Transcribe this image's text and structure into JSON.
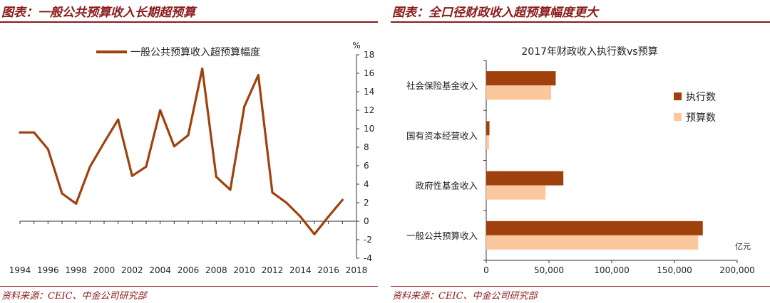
{
  "left": {
    "title": "图表：一般公共预算收入长期超预算",
    "source": "资料来源：CEIC、中金公司研究部"
  },
  "right": {
    "title": "图表：全口径财政收入超预算幅度更大",
    "source": "资料来源：CEIC、中金公司研究部"
  },
  "colors": {
    "accent": "#8b1a1a",
    "line": "#a0410d",
    "bar_actual": "#a0410d",
    "bar_budget": "#fbc79c"
  },
  "chart_data": [
    {
      "type": "line",
      "title": "",
      "series": [
        {
          "name": "一般公共预算收入超预算幅度",
          "x": [
            1994,
            1995,
            1996,
            1997,
            1998,
            1999,
            2000,
            2001,
            2002,
            2003,
            2004,
            2005,
            2006,
            2007,
            2008,
            2009,
            2010,
            2011,
            2012,
            2013,
            2014,
            2015,
            2016,
            2017
          ],
          "values": [
            9.6,
            9.6,
            7.8,
            3.0,
            1.9,
            5.9,
            8.5,
            11.0,
            4.9,
            5.9,
            12.0,
            8.1,
            9.3,
            16.5,
            4.8,
            3.4,
            12.4,
            15.8,
            3.1,
            2.0,
            0.5,
            -1.4,
            0.5,
            2.3
          ]
        }
      ],
      "yunit": "%",
      "ylim": [
        -4,
        18
      ],
      "yticks": [
        -4,
        -2,
        0,
        2,
        4,
        6,
        8,
        10,
        12,
        14,
        16,
        18
      ],
      "xticks": [
        1994,
        1996,
        1998,
        2000,
        2002,
        2004,
        2006,
        2008,
        2010,
        2012,
        2014,
        2016,
        2018
      ],
      "legend": "top"
    },
    {
      "type": "bar",
      "orientation": "horizontal",
      "title": "2017年财政收入执行数vs预算",
      "categories": [
        "一般公共预算收入",
        "政府性基金收入",
        "国有资本经营收入",
        "社会保险基金收入"
      ],
      "series": [
        {
          "name": "执行数",
          "values": [
            172593,
            61462,
            2581,
            55380
          ]
        },
        {
          "name": "预算数",
          "values": [
            168890,
            47200,
            2174,
            51675
          ]
        }
      ],
      "xunit": "亿元",
      "xlim": [
        0,
        200000
      ],
      "xticks": [
        0,
        50000,
        100000,
        150000,
        200000
      ],
      "xtick_labels": [
        "0",
        "50,000",
        "100,000",
        "150,000",
        "200,000"
      ],
      "legend": "right"
    }
  ]
}
